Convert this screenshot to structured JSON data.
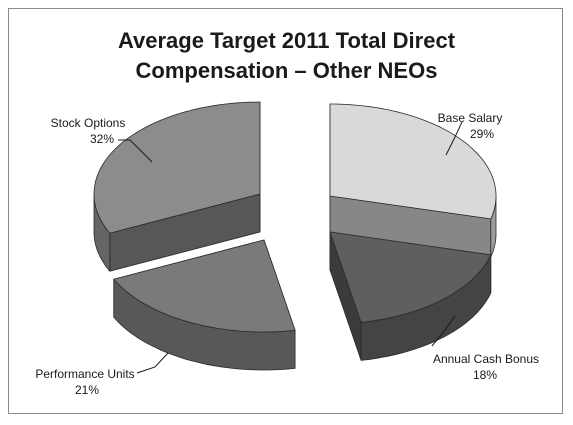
{
  "chart_data": {
    "type": "pie",
    "title_lines": [
      "Average Target 2011 Total Direct",
      "Compensation –  Other NEOs"
    ],
    "slices": [
      {
        "label": "Base Salary",
        "value": 29,
        "value_label": "29%",
        "color": "#d9d9d9"
      },
      {
        "label": "Annual Cash Bonus",
        "value": 18,
        "value_label": "18%",
        "color": "#5f5f5f"
      },
      {
        "label": "Performance Units",
        "value": 21,
        "value_label": "21%",
        "color": "#7a7a7a"
      },
      {
        "label": "Stock Options",
        "value": 32,
        "value_label": "32%",
        "color": "#8c8c8c"
      }
    ],
    "exploded": true,
    "three_d": true
  }
}
